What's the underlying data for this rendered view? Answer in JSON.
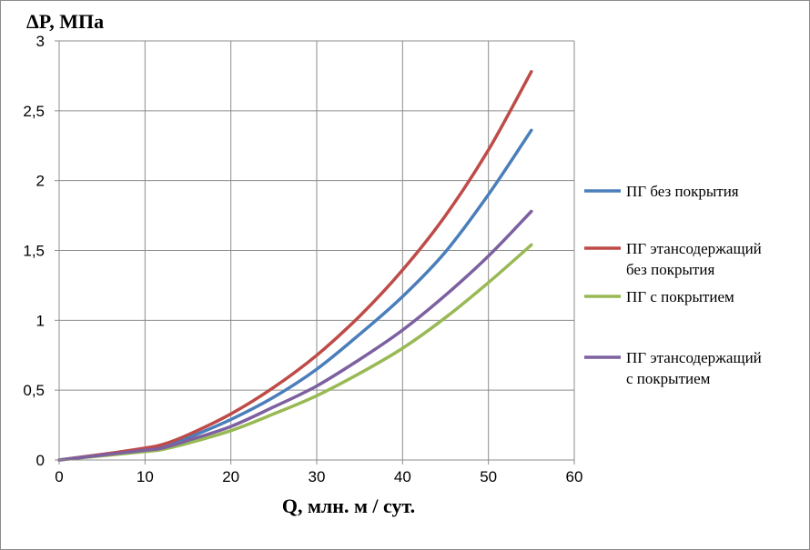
{
  "chart_data": {
    "type": "line",
    "title": "",
    "ylabel": "ΔP, МПа",
    "xlabel": "Q, млн. м / сут.",
    "xlim": [
      0,
      60
    ],
    "ylim": [
      0,
      3
    ],
    "xticks": [
      0,
      10,
      20,
      30,
      40,
      50,
      60
    ],
    "yticks": [
      0,
      0.5,
      1,
      1.5,
      2,
      2.5,
      3
    ],
    "xtick_labels": [
      "0",
      "10",
      "20",
      "30",
      "40",
      "50",
      "60"
    ],
    "ytick_labels": [
      "0",
      "0,5",
      "1",
      "1,5",
      "2",
      "2,5",
      "3"
    ],
    "grid": true,
    "legend_position": "right",
    "series": [
      {
        "name": [
          "ПГ без покрытия"
        ],
        "color": "#4a7ebb",
        "x": [
          0,
          5,
          10,
          12,
          15,
          20,
          25,
          30,
          35,
          40,
          45,
          50,
          55
        ],
        "y": [
          0,
          0.04,
          0.08,
          0.1,
          0.16,
          0.29,
          0.45,
          0.65,
          0.9,
          1.17,
          1.49,
          1.9,
          2.36
        ]
      },
      {
        "name": [
          "ПГ этансодержащий",
          "без покрытия"
        ],
        "color": "#be4b48",
        "x": [
          0,
          5,
          10,
          12,
          15,
          20,
          25,
          30,
          35,
          40,
          45,
          50,
          55
        ],
        "y": [
          0,
          0.04,
          0.085,
          0.11,
          0.18,
          0.33,
          0.52,
          0.75,
          1.03,
          1.36,
          1.75,
          2.22,
          2.78
        ]
      },
      {
        "name": [
          "ПГ с покрытием"
        ],
        "color": "#98b954",
        "x": [
          0,
          5,
          10,
          12,
          15,
          20,
          25,
          30,
          35,
          40,
          45,
          50,
          55
        ],
        "y": [
          0,
          0.03,
          0.06,
          0.075,
          0.12,
          0.21,
          0.33,
          0.46,
          0.62,
          0.8,
          1.02,
          1.27,
          1.54
        ]
      },
      {
        "name": [
          "ПГ этансодержащий",
          "с покрытием"
        ],
        "color": "#7d60a0",
        "x": [
          0,
          5,
          10,
          12,
          15,
          20,
          25,
          30,
          35,
          40,
          45,
          50,
          55
        ],
        "y": [
          0,
          0.035,
          0.07,
          0.085,
          0.14,
          0.24,
          0.38,
          0.53,
          0.72,
          0.93,
          1.18,
          1.46,
          1.78
        ]
      }
    ]
  }
}
